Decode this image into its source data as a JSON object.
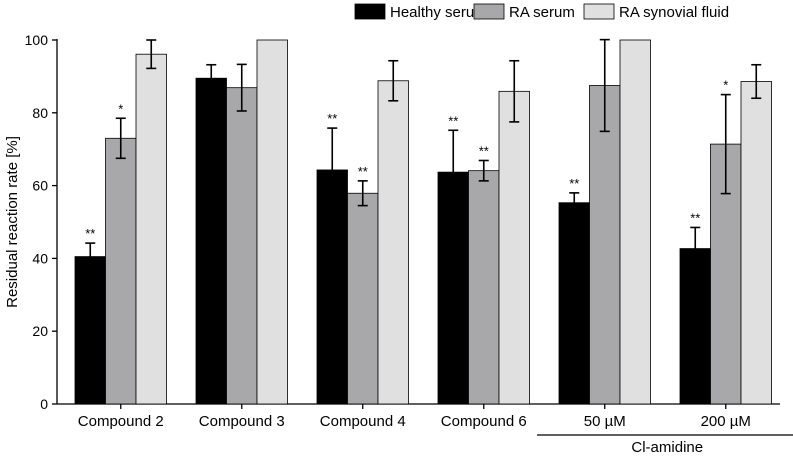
{
  "chart_data": {
    "type": "bar",
    "title": "",
    "xlabel": "",
    "ylabel": "Residual reaction rate [%]",
    "ylim": [
      0,
      100
    ],
    "yticks": [
      0,
      20,
      40,
      60,
      80,
      100
    ],
    "grid": false,
    "legend_position": "top-right",
    "categories": [
      "Compound 2",
      "Compound 3",
      "Compound 4",
      "Compound 6",
      "50 µM",
      "200 µM"
    ],
    "group_label": {
      "text": "Cl-amidine",
      "categories": [
        "50 µM",
        "200 µM"
      ]
    },
    "series": [
      {
        "name": "Healthy serum",
        "color": "#000000",
        "values": [
          40.5,
          89.5,
          64.3,
          63.7,
          55.3,
          42.7
        ],
        "errors": [
          3.7,
          3.7,
          11.5,
          11.5,
          2.7,
          5.8
        ],
        "significance": [
          "**",
          "",
          "**",
          "**",
          "**",
          "**"
        ]
      },
      {
        "name": "RA serum",
        "color": "#a8a8ab",
        "values": [
          73.0,
          86.9,
          57.9,
          64.1,
          87.5,
          71.4
        ],
        "errors": [
          5.5,
          6.4,
          3.4,
          2.8,
          12.6,
          13.6
        ],
        "significance": [
          "*",
          "",
          "**",
          "**",
          "",
          "*"
        ]
      },
      {
        "name": "RA synovial fluid",
        "color": "#e0e0e0",
        "values": [
          96.1,
          100.0,
          88.8,
          85.9,
          100.0,
          88.6
        ],
        "errors": [
          3.9,
          0,
          5.5,
          8.4,
          0,
          4.6
        ],
        "significance": [
          "",
          "",
          "",
          "",
          "",
          ""
        ]
      }
    ]
  }
}
